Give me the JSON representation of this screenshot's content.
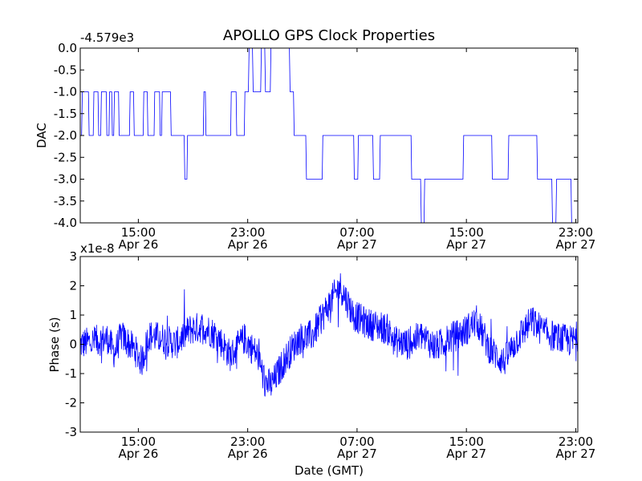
{
  "title": "APOLLO GPS Clock Properties",
  "xlabel": "Date (GMT)",
  "x_ticks": [
    {
      "time": "15:00",
      "date": "Apr 26"
    },
    {
      "time": "23:00",
      "date": "Apr 26"
    },
    {
      "time": "07:00",
      "date": "Apr 27"
    },
    {
      "time": "15:00",
      "date": "Apr 27"
    },
    {
      "time": "23:00",
      "date": "Apr 27"
    }
  ],
  "chart_data": [
    {
      "type": "line",
      "ylabel": "DAC",
      "offset_label": "-4.579e3",
      "xlim": [
        "2010-04-26 10:45",
        "2010-04-27 23:10"
      ],
      "ylim": [
        -4.0,
        0.0
      ],
      "yticks": [
        "-4.0",
        "-3.5",
        "-3.0",
        "-2.5",
        "-2.0",
        "-1.5",
        "-1.0",
        "-0.5",
        "0.0"
      ],
      "line_color": "#0000ff",
      "series": [
        {
          "x_hours_from_xlim_start": [
            0,
            0.1,
            0.15,
            0.6,
            0.65,
            0.95,
            1.0,
            1.3,
            1.35,
            1.5,
            1.55,
            1.9,
            1.95,
            2.1,
            2.15,
            2.3,
            2.35,
            2.45,
            2.5,
            2.8,
            2.85,
            3.6,
            3.65,
            3.9,
            3.95,
            4.6,
            4.65,
            4.9,
            4.95,
            5.4,
            5.45,
            5.8,
            5.85,
            5.95,
            6.0,
            6.6,
            6.65,
            7.6,
            7.65,
            7.8,
            7.85,
            9.0,
            9.05,
            9.15,
            9.2,
            11.0,
            11.05,
            11.4,
            11.45,
            12.0,
            12.05,
            12.3,
            12.35,
            12.6,
            12.65,
            13.2,
            13.25,
            13.5,
            13.55,
            13.9,
            13.95,
            15.3,
            15.35,
            15.6,
            15.65,
            16.5,
            16.55,
            17.7,
            17.75,
            20.0,
            20.05,
            20.3,
            20.35,
            21.4,
            21.45,
            21.9,
            21.95,
            24.2,
            24.25,
            24.9,
            24.95,
            25.15,
            25.2,
            28.0,
            28.05,
            30.1,
            30.15,
            31.3,
            31.35,
            33.4,
            33.45,
            34.5,
            34.55,
            34.8,
            34.85,
            35.9,
            35.95,
            36.4
          ],
          "dac_minus_offset": [
            -2,
            -2,
            -1,
            -1,
            -2,
            -2,
            -1,
            -1,
            -2,
            -2,
            -1,
            -1,
            -2,
            -2,
            -1,
            -1,
            -2,
            -2,
            -1,
            -1,
            -2,
            -2,
            -1,
            -1,
            -2,
            -2,
            -1,
            -1,
            -2,
            -2,
            -1,
            -1,
            -2,
            -2,
            -1,
            -1,
            -2,
            -2,
            -3,
            -3,
            -2,
            -2,
            -1,
            -1,
            -2,
            -2,
            -1,
            -1,
            -2,
            -2,
            -1,
            -1,
            0,
            0,
            -1,
            -1,
            0,
            0,
            -1,
            -1,
            0,
            0,
            -1,
            -1,
            -2,
            -2,
            -3,
            -3,
            -2,
            -2,
            -3,
            -3,
            -2,
            -2,
            -3,
            -3,
            -2,
            -2,
            -3,
            -3,
            -4,
            -4,
            -3,
            -3,
            -2,
            -2,
            -3,
            -3,
            -2,
            -2,
            -3,
            -3,
            -4,
            -4,
            -3,
            -3,
            -4,
            -4,
            -3,
            -3
          ]
        }
      ]
    },
    {
      "type": "line",
      "ylabel": "Phase (s)",
      "offset_label": "x1e-8",
      "xlim": [
        "2010-04-26 10:45",
        "2010-04-27 23:10"
      ],
      "ylim": [
        -3,
        3
      ],
      "yticks": [
        "-3",
        "-2",
        "-1",
        "0",
        "1",
        "2",
        "3"
      ],
      "line_color": "#0000ff",
      "series": [
        {
          "x_hours_from_xlim_start": [
            0,
            1,
            2,
            2.5,
            3,
            4,
            4.5,
            5,
            6,
            7,
            8,
            9,
            10,
            11,
            12,
            13,
            13.5,
            14,
            15,
            16,
            17,
            18,
            19,
            20,
            21,
            22,
            22.5,
            23,
            24,
            25,
            26,
            27,
            28,
            29,
            30,
            31,
            32,
            33,
            34,
            35,
            36,
            36.4
          ],
          "phase_e8": [
            0,
            0.1,
            0.2,
            -0.3,
            0.3,
            -0.2,
            -0.6,
            0.3,
            0.2,
            0.0,
            0.5,
            0.6,
            0.3,
            -0.4,
            0.2,
            -0.4,
            -1.3,
            -1.4,
            -0.5,
            0.2,
            0.3,
            1.2,
            2.0,
            1.0,
            0.7,
            0.6,
            0.5,
            0.1,
            0.0,
            0.3,
            -0.1,
            0.2,
            0.4,
            0.8,
            -0.2,
            -0.6,
            0.2,
            0.8,
            0.4,
            0.2,
            0.1,
            0.3
          ]
        }
      ]
    }
  ]
}
